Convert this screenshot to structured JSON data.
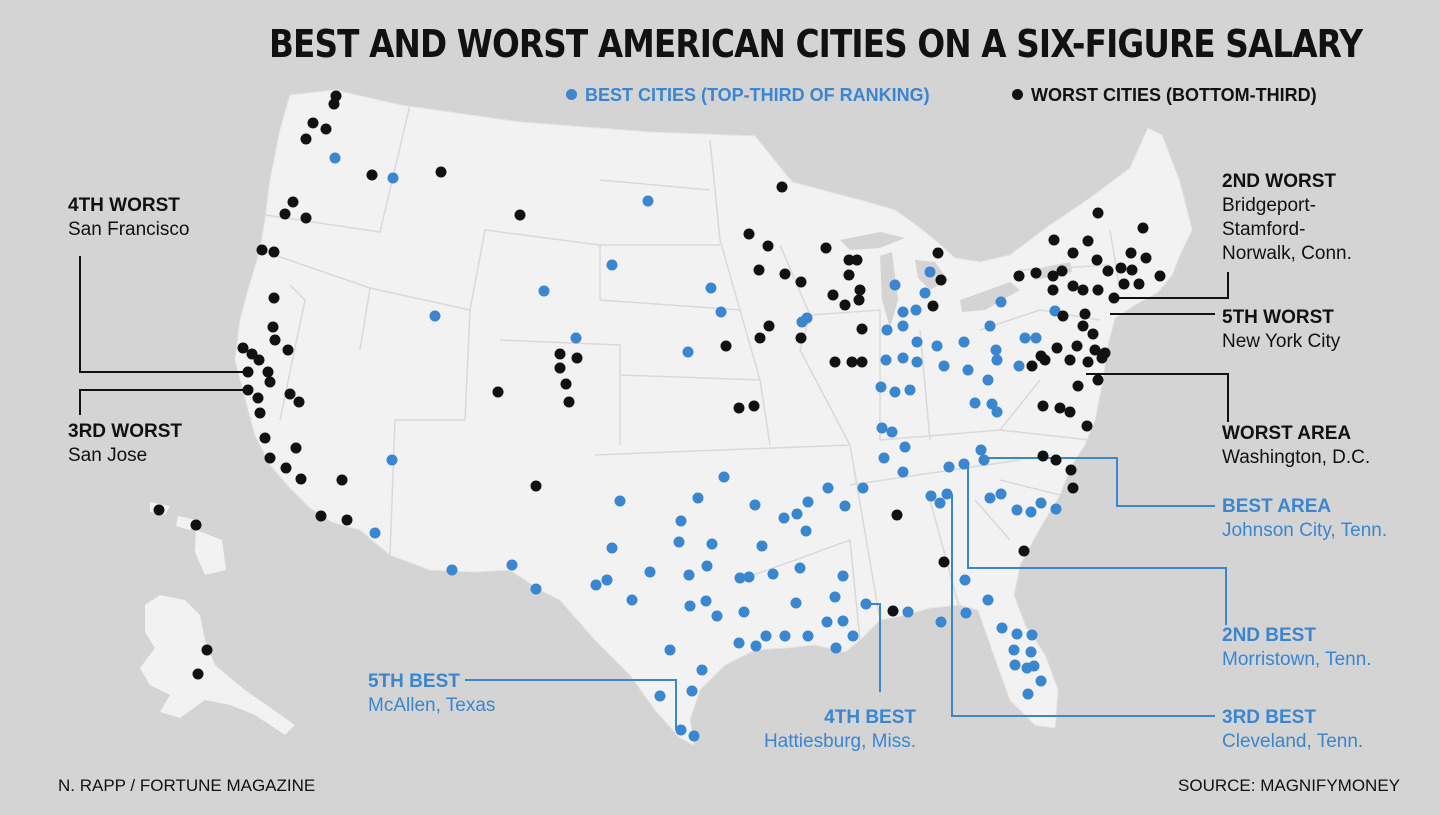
{
  "title": "BEST AND WORST AMERICAN CITIES ON A SIX-FIGURE SALARY",
  "legend": {
    "best": "BEST CITIES (TOP-THIRD OF RANKING)",
    "worst": "WORST CITIES (BOTTOM-THIRD)"
  },
  "colors": {
    "best": "#3a86cf",
    "worst": "#111111",
    "land": "#f2f2f2",
    "background": "#d4d4d4",
    "border": "#c9c9c9"
  },
  "callouts": {
    "worst4": {
      "rank": "4TH WORST",
      "city": "San Francisco"
    },
    "worst3": {
      "rank": "3RD WORST",
      "city": "San Jose"
    },
    "worst2": {
      "rank": "2ND WORST",
      "city": "Bridgeport-\nStamford-\nNorwalk, Conn."
    },
    "worst5": {
      "rank": "5TH WORST",
      "city": "New York City"
    },
    "worstArea": {
      "rank": "WORST AREA",
      "city": "Washington, D.C."
    },
    "bestArea": {
      "rank": "BEST AREA",
      "city": "Johnson City, Tenn."
    },
    "best2": {
      "rank": "2ND BEST",
      "city": "Morristown, Tenn."
    },
    "best3": {
      "rank": "3RD BEST",
      "city": "Cleveland, Tenn."
    },
    "best4": {
      "rank": "4TH BEST",
      "city": "Hattiesburg, Miss."
    },
    "best5": {
      "rank": "5TH BEST",
      "city": "McAllen, Texas"
    }
  },
  "credit": "N. RAPP / FORTUNE MAGAZINE",
  "source": "SOURCE: MAGNIFYMONEY"
}
